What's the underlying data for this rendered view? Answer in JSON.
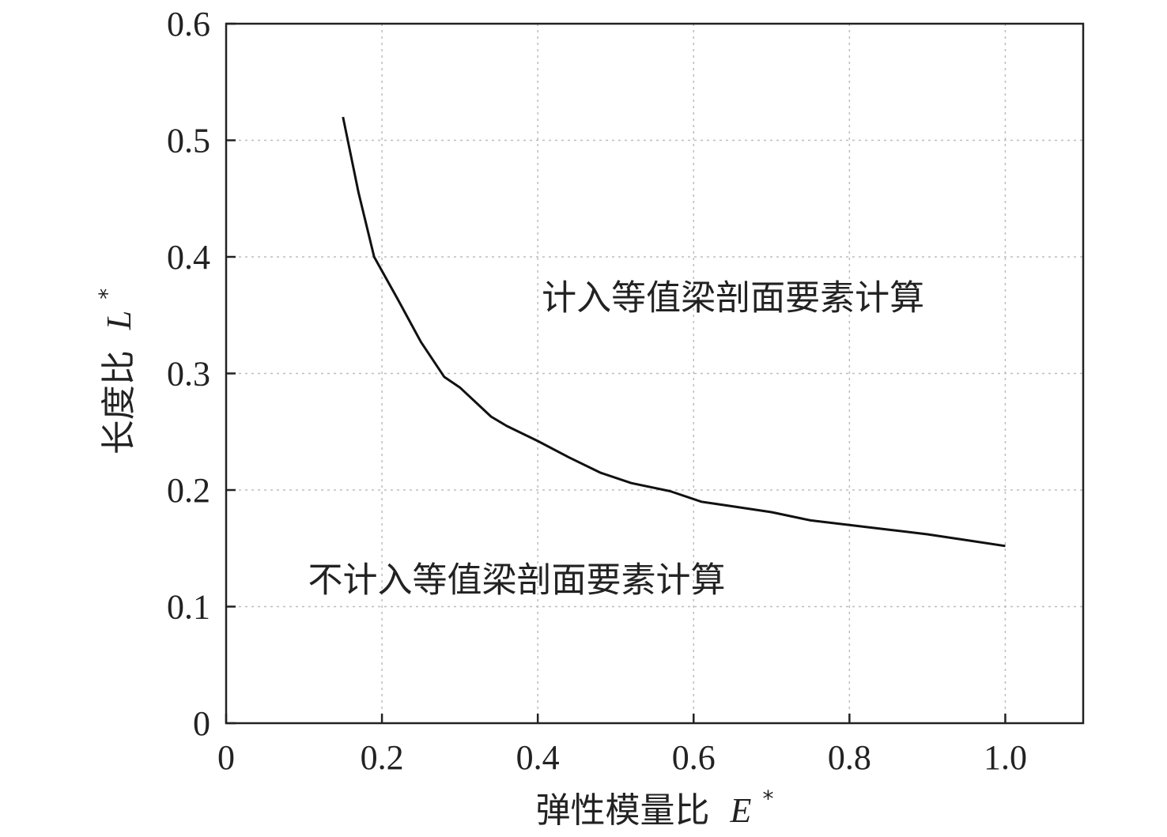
{
  "chart_data": {
    "type": "line",
    "title": "",
    "xlabel_text": "弹性模量比",
    "xlabel_var": "E",
    "xlabel_sup": "*",
    "ylabel_text": "长度比",
    "ylabel_var": "L",
    "ylabel_sup": "*",
    "xlim": [
      0,
      1.1
    ],
    "ylim": [
      0,
      0.6
    ],
    "xticks": [
      0,
      0.2,
      0.4,
      0.6,
      0.8,
      1.0
    ],
    "xtick_labels": [
      "0",
      "0.2",
      "0.4",
      "0.6",
      "0.8",
      "1.0"
    ],
    "yticks": [
      0,
      0.1,
      0.2,
      0.3,
      0.4,
      0.5,
      0.6
    ],
    "ytick_labels": [
      "0",
      "0.1",
      "0.2",
      "0.3",
      "0.4",
      "0.5",
      "0.6"
    ],
    "grid": true,
    "series": [
      {
        "x": [
          0.15,
          0.17,
          0.19,
          0.22,
          0.25,
          0.28,
          0.3,
          0.34,
          0.36,
          0.4,
          0.44,
          0.48,
          0.52,
          0.57,
          0.61,
          0.65,
          0.7,
          0.75,
          0.8,
          0.85,
          0.9,
          0.95,
          1.0
        ],
        "y": [
          0.52,
          0.455,
          0.4,
          0.364,
          0.327,
          0.297,
          0.288,
          0.263,
          0.255,
          0.242,
          0.228,
          0.215,
          0.206,
          0.199,
          0.19,
          0.186,
          0.181,
          0.174,
          0.17,
          0.166,
          0.162,
          0.157,
          0.152
        ],
        "color": "#111111"
      }
    ],
    "annotations": [
      {
        "text": "计入等值梁剖面要素计算",
        "x": 0.405,
        "y": 0.355
      },
      {
        "text": "不计入等值梁剖面要素计算",
        "x": 0.105,
        "y": 0.113
      }
    ]
  }
}
